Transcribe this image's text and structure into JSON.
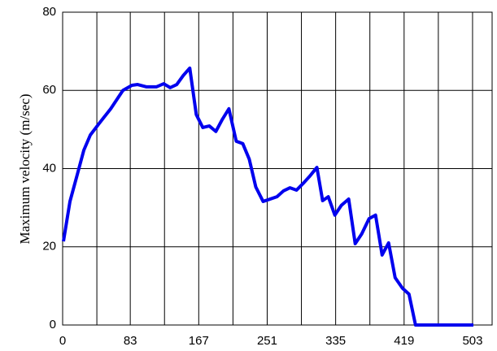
{
  "chart_data": {
    "type": "line",
    "ylabel": "Maximum velocity (m/sec)",
    "x": [
      1,
      9,
      18,
      26,
      34,
      45,
      59,
      74,
      85,
      92,
      103,
      115,
      124,
      132,
      140,
      148,
      156,
      164,
      172,
      180,
      188,
      196,
      204,
      213,
      221,
      229,
      237,
      246,
      263,
      271,
      279,
      287,
      296,
      303,
      312,
      319,
      326,
      334,
      342,
      351,
      359,
      367,
      376,
      384,
      392,
      400,
      408,
      417,
      425,
      433,
      504
    ],
    "series": [
      {
        "color": "#0000ee",
        "values": [
          21.4,
          31.6,
          38.5,
          44.7,
          48.6,
          51.6,
          55.3,
          60,
          61.3,
          61.5,
          60.9,
          60.9,
          61.7,
          60.7,
          61.5,
          63.8,
          65.7,
          53.8,
          50.5,
          50.9,
          49.5,
          52.6,
          55.3,
          47,
          46.4,
          42.4,
          35.3,
          31.6,
          32.8,
          34.3,
          35.1,
          34.5,
          36.4,
          38,
          40.3,
          31.8,
          32.8,
          28.1,
          30.6,
          32.2,
          20.8,
          23.3,
          27.2,
          28.1,
          17.9,
          21,
          12.1,
          9.4,
          7.9,
          0,
          0
        ]
      }
    ],
    "xlim": [
      0,
      527
    ],
    "xticks": [
      0,
      83,
      167,
      251,
      335,
      419,
      503
    ],
    "xminor": [
      42,
      125,
      209,
      293,
      377,
      461,
      545
    ],
    "ylim": [
      0,
      80
    ],
    "yticks": [
      0,
      20,
      40,
      60,
      80
    ],
    "grid": true
  }
}
